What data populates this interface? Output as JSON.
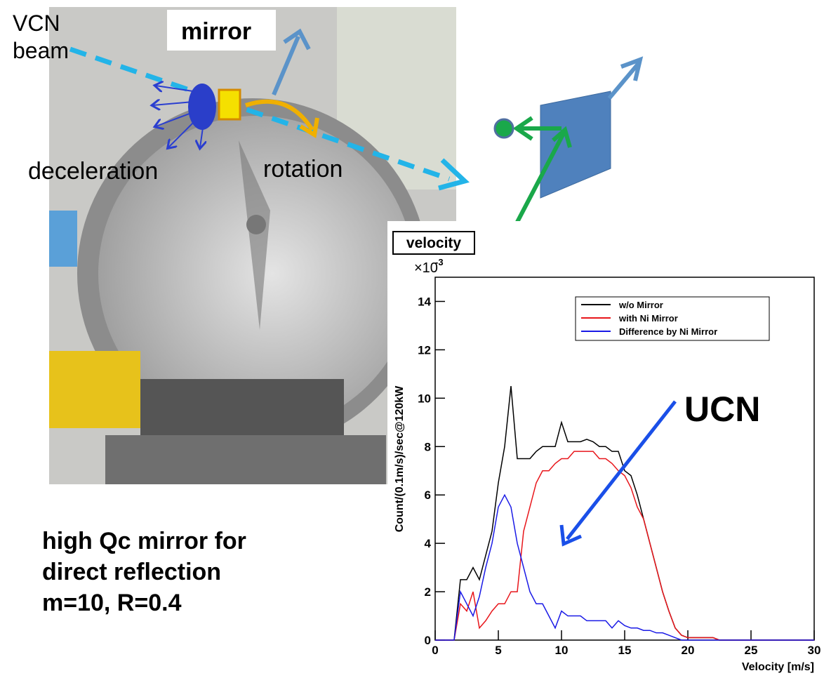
{
  "labels": {
    "vcn_beam": [
      "VCN",
      "beam"
    ],
    "mirror": "mirror",
    "deceleration": "deceleration",
    "rotation": "rotation"
  },
  "caption": [
    "high Qc mirror for",
    "direct reflection",
    "m=10, R=0.4"
  ],
  "chart_data": {
    "type": "line",
    "title": "velocity",
    "y_scale": {
      "base": "×10",
      "exponent": "-3"
    },
    "xlabel": "Velocity [m/s]",
    "ylabel": "Count/(0.1m/s)/sec@120kW",
    "annotation": "UCN",
    "legend": "upper right",
    "xlim": [
      0,
      30
    ],
    "ylim": [
      0,
      15
    ],
    "xticks": [
      0,
      5,
      10,
      15,
      20,
      25,
      30
    ],
    "yticks": [
      0,
      2,
      4,
      6,
      8,
      10,
      12,
      14
    ],
    "x": [
      0,
      0.5,
      1,
      1.5,
      2,
      2.5,
      3,
      3.5,
      4,
      4.5,
      5,
      5.5,
      6,
      6.5,
      7,
      7.5,
      8,
      8.5,
      9,
      9.5,
      10,
      10.5,
      11,
      11.5,
      12,
      12.5,
      13,
      13.5,
      14,
      14.5,
      15,
      15.5,
      16,
      16.5,
      17,
      17.5,
      18,
      18.5,
      19,
      19.5,
      20,
      20.5,
      21,
      21.5,
      22,
      22.5,
      23,
      23.5,
      24,
      24.5,
      25,
      25.5,
      26,
      26.5,
      27,
      27.5,
      28,
      28.5,
      29,
      29.5,
      30
    ],
    "series": [
      {
        "name": "w/o Mirror",
        "color": "#000000",
        "values": [
          0,
          0,
          0,
          0,
          2.5,
          2.5,
          3,
          2.5,
          3.5,
          4.5,
          6.5,
          8,
          10.5,
          7.5,
          7.5,
          7.5,
          7.8,
          8,
          8,
          8,
          9,
          8.2,
          8.2,
          8.2,
          8.3,
          8.2,
          8,
          8,
          7.8,
          7.8,
          7,
          6.8,
          6,
          5,
          4,
          3,
          2,
          1.2,
          0.5,
          0.2,
          0.1,
          0.1,
          0.1,
          0.1,
          0.1,
          0,
          0,
          0,
          0,
          0,
          0,
          0,
          0,
          0,
          0,
          0,
          0,
          0,
          0,
          0,
          0
        ]
      },
      {
        "name": "with Ni Mirror",
        "color": "#e8161b",
        "values": [
          0,
          0,
          0,
          0,
          1.5,
          1.2,
          2,
          0.5,
          0.8,
          1.2,
          1.5,
          1.5,
          2,
          2,
          4.5,
          5.5,
          6.5,
          7,
          7,
          7.3,
          7.5,
          7.5,
          7.8,
          7.8,
          7.8,
          7.8,
          7.5,
          7.5,
          7.3,
          7,
          6.8,
          6.3,
          5.5,
          5,
          4,
          3,
          2,
          1.2,
          0.5,
          0.2,
          0.1,
          0.1,
          0.1,
          0.1,
          0.1,
          0,
          0,
          0,
          0,
          0,
          0,
          0,
          0,
          0,
          0,
          0,
          0,
          0,
          0,
          0,
          0
        ]
      },
      {
        "name": "Difference by Ni Mirror",
        "color": "#1a1ae6",
        "values": [
          0,
          0,
          0,
          0,
          2,
          1.5,
          1,
          1.8,
          3,
          4,
          5.5,
          6,
          5.5,
          4,
          3,
          2,
          1.5,
          1.5,
          1,
          0.5,
          1.2,
          1,
          1,
          1,
          0.8,
          0.8,
          0.8,
          0.8,
          0.5,
          0.8,
          0.6,
          0.5,
          0.5,
          0.4,
          0.4,
          0.3,
          0.3,
          0.2,
          0.1,
          0,
          0,
          0,
          0,
          0,
          0,
          0,
          0,
          0,
          0,
          0,
          0,
          0,
          0,
          0,
          0,
          0,
          0,
          0,
          0,
          0,
          0
        ]
      }
    ]
  }
}
